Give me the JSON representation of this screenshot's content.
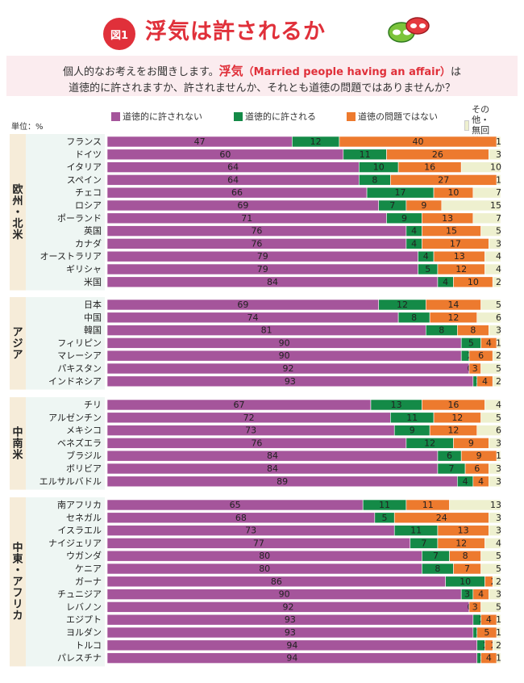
{
  "header": {
    "badge": "図1",
    "title": "浮気は許されるか",
    "question_line1_pre": "個人的なお考えをお聞きします。",
    "question_keyword": "浮気",
    "question_english": "（Married people having an affair）",
    "question_line1_post": "は",
    "question_line2": "道徳的に許されますか、許されませんか、それとも道徳の問題ではありませんか？"
  },
  "unit": "単位：%",
  "colors": {
    "not_acceptable": "#a5559b",
    "acceptable": "#148a47",
    "not_moral_issue": "#ed7a2e",
    "other": "#eef0cf",
    "title_red": "#e0303a"
  },
  "chart_data": {
    "type": "bar",
    "stacked": true,
    "orientation": "horizontal",
    "xlim": [
      0,
      100
    ],
    "series": [
      {
        "name": "道徳的に許されない",
        "key": "not_acceptable"
      },
      {
        "name": "道徳的に許される",
        "key": "acceptable"
      },
      {
        "name": "道徳の問題ではない",
        "key": "not_moral_issue"
      },
      {
        "name": "その他・無回答",
        "key": "other"
      }
    ],
    "groups": [
      {
        "label": "欧州・北米",
        "rows": [
          {
            "country": "フランス",
            "values": [
              47,
              12,
              40,
              1
            ]
          },
          {
            "country": "ドイツ",
            "values": [
              60,
              11,
              26,
              3
            ]
          },
          {
            "country": "イタリア",
            "values": [
              64,
              10,
              16,
              10
            ]
          },
          {
            "country": "スペイン",
            "values": [
              64,
              8,
              27,
              1
            ]
          },
          {
            "country": "チェコ",
            "values": [
              66,
              17,
              10,
              7
            ]
          },
          {
            "country": "ロシア",
            "values": [
              69,
              7,
              9,
              15
            ]
          },
          {
            "country": "ポーランド",
            "values": [
              71,
              9,
              13,
              7
            ]
          },
          {
            "country": "英国",
            "values": [
              76,
              4,
              15,
              5
            ]
          },
          {
            "country": "カナダ",
            "values": [
              76,
              4,
              17,
              3
            ]
          },
          {
            "country": "オーストラリア",
            "values": [
              79,
              4,
              13,
              4
            ]
          },
          {
            "country": "ギリシャ",
            "values": [
              79,
              5,
              12,
              4
            ]
          },
          {
            "country": "米国",
            "values": [
              84,
              4,
              10,
              2
            ]
          }
        ]
      },
      {
        "label": "アジア",
        "rows": [
          {
            "country": "日本",
            "values": [
              69,
              12,
              14,
              5
            ]
          },
          {
            "country": "中国",
            "values": [
              74,
              8,
              12,
              6
            ]
          },
          {
            "country": "韓国",
            "values": [
              81,
              8,
              8,
              3
            ]
          },
          {
            "country": "フィリピン",
            "values": [
              90,
              5,
              4,
              1
            ]
          },
          {
            "country": "マレーシア",
            "values": [
              90,
              2,
              6,
              2
            ]
          },
          {
            "country": "パキスタン",
            "values": [
              92,
              0,
              3,
              5
            ]
          },
          {
            "country": "インドネシア",
            "values": [
              93,
              1,
              4,
              2
            ]
          }
        ]
      },
      {
        "label": "中南米",
        "rows": [
          {
            "country": "チリ",
            "values": [
              67,
              13,
              16,
              4
            ]
          },
          {
            "country": "アルゼンチン",
            "values": [
              72,
              11,
              12,
              5
            ]
          },
          {
            "country": "メキシコ",
            "values": [
              73,
              9,
              12,
              6
            ]
          },
          {
            "country": "ベネズエラ",
            "values": [
              76,
              12,
              9,
              3
            ]
          },
          {
            "country": "ブラジル",
            "values": [
              84,
              6,
              9,
              1
            ]
          },
          {
            "country": "ボリビア",
            "values": [
              84,
              7,
              6,
              3
            ]
          },
          {
            "country": "エルサルバドル",
            "values": [
              89,
              4,
              4,
              3
            ]
          }
        ]
      },
      {
        "label": "中東・アフリカ",
        "rows": [
          {
            "country": "南アフリカ",
            "values": [
              65,
              11,
              11,
              13
            ]
          },
          {
            "country": "セネガル",
            "values": [
              68,
              5,
              24,
              3
            ]
          },
          {
            "country": "イスラエル",
            "values": [
              73,
              11,
              13,
              3
            ]
          },
          {
            "country": "ナイジェリア",
            "values": [
              77,
              7,
              12,
              4
            ]
          },
          {
            "country": "ウガンダ",
            "values": [
              80,
              7,
              8,
              5
            ]
          },
          {
            "country": "ケニア",
            "values": [
              80,
              8,
              7,
              5
            ]
          },
          {
            "country": "ガーナ",
            "values": [
              86,
              10,
              2,
              2
            ]
          },
          {
            "country": "チュニジア",
            "values": [
              90,
              3,
              4,
              3
            ]
          },
          {
            "country": "レバノン",
            "values": [
              92,
              0,
              3,
              5
            ]
          },
          {
            "country": "エジプト",
            "values": [
              93,
              2,
              4,
              1
            ]
          },
          {
            "country": "ヨルダン",
            "values": [
              93,
              1,
              5,
              1
            ]
          },
          {
            "country": "トルコ",
            "values": [
              94,
              2,
              2,
              2
            ]
          },
          {
            "country": "パレスチナ",
            "values": [
              94,
              1,
              4,
              1
            ]
          }
        ]
      }
    ]
  }
}
